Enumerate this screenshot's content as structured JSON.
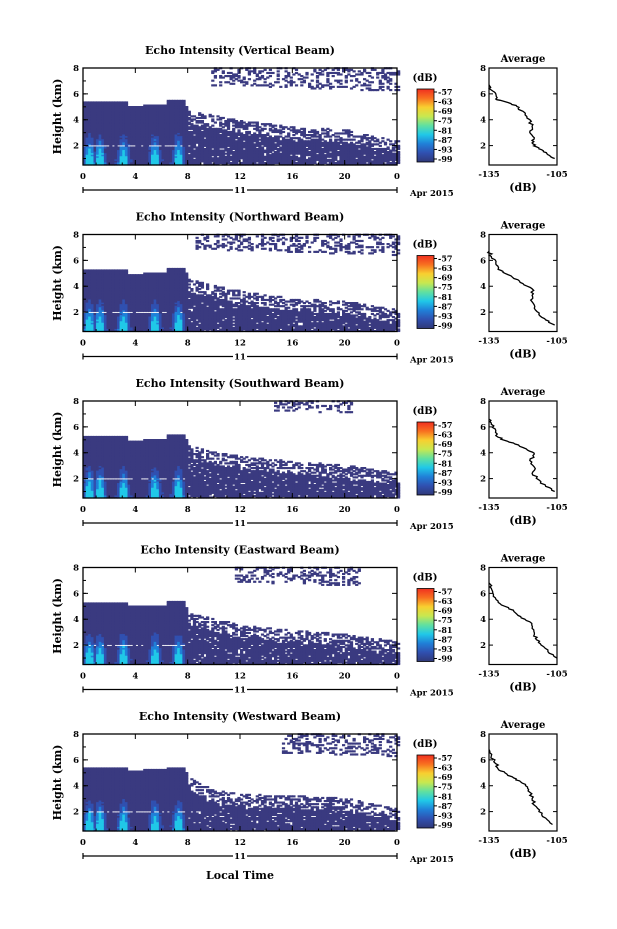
{
  "figure": {
    "xlabel": "Local Time",
    "date_label": "Apr 2015",
    "day_label": "11"
  },
  "colorbar": {
    "unit": "(dB)",
    "ticks": [
      "-57",
      "-63",
      "-69",
      "-75",
      "-81",
      "-87",
      "-93",
      "-99"
    ],
    "stops": [
      "#f03020",
      "#f87020",
      "#f8d030",
      "#c8e850",
      "#60e0a0",
      "#20c8e8",
      "#2080d8",
      "#3050b0",
      "#303878"
    ],
    "background_color": "#3a3a80"
  },
  "chart_data": [
    {
      "type": "heatmap",
      "title": "Echo Intensity (Vertical Beam)",
      "xlabel": "",
      "ylabel": "Height (km)",
      "x_ticks": [
        "0",
        "4",
        "8",
        "12",
        "16",
        "20",
        "0"
      ],
      "y_ticks": [
        "2",
        "4",
        "6",
        "8"
      ],
      "xlim": [
        0,
        24
      ],
      "ylim": [
        0.5,
        8
      ],
      "echo_top_km": [
        [
          0,
          5.4
        ],
        [
          3.2,
          5.4
        ],
        [
          3.3,
          5.0
        ],
        [
          4.4,
          5.0
        ],
        [
          4.5,
          5.1
        ],
        [
          6.2,
          5.1
        ],
        [
          6.4,
          5.5
        ],
        [
          7.6,
          5.5
        ],
        [
          8,
          4.6
        ],
        [
          10,
          4.3
        ],
        [
          12,
          3.9
        ],
        [
          16,
          3.4
        ],
        [
          20,
          3.2
        ],
        [
          23.5,
          2.4
        ]
      ],
      "upper_layer_km": [
        [
          9.7,
          6.6
        ],
        [
          24,
          8.0
        ]
      ],
      "average": {
        "title": "Average",
        "xlabel": "(dB)",
        "x_ticks": [
          "-135",
          "-105"
        ],
        "y_ticks": [
          "2",
          "4",
          "6",
          "8"
        ],
        "xlim": [
          -135,
          -105
        ],
        "ylim": [
          0.5,
          8
        ],
        "profile": [
          [
            -106,
            1.0
          ],
          [
            -109,
            1.3
          ],
          [
            -111,
            1.6
          ],
          [
            -114,
            1.9
          ],
          [
            -116,
            2.2
          ],
          [
            -115,
            2.6
          ],
          [
            -117,
            3.0
          ],
          [
            -116,
            3.5
          ],
          [
            -117,
            4.0
          ],
          [
            -119,
            4.5
          ],
          [
            -122,
            4.8
          ],
          [
            -123,
            5.1
          ],
          [
            -128,
            5.4
          ],
          [
            -132,
            5.6
          ],
          [
            -132,
            6.0
          ],
          [
            -134,
            6.3
          ],
          [
            -135,
            6.7
          ]
        ]
      }
    },
    {
      "type": "heatmap",
      "title": "Echo Intensity (Northward Beam)",
      "xlabel": "",
      "ylabel": "Height (km)",
      "x_ticks": [
        "0",
        "4",
        "8",
        "12",
        "16",
        "20",
        "0"
      ],
      "y_ticks": [
        "2",
        "4",
        "6",
        "8"
      ],
      "xlim": [
        0,
        24
      ],
      "ylim": [
        0.5,
        8
      ],
      "echo_top_km": [
        [
          0,
          5.2
        ],
        [
          3.2,
          5.2
        ],
        [
          3.3,
          4.9
        ],
        [
          4.4,
          4.9
        ],
        [
          4.5,
          5.0
        ],
        [
          6.2,
          5.0
        ],
        [
          6.4,
          5.4
        ],
        [
          7.6,
          5.4
        ],
        [
          8,
          4.5
        ],
        [
          10,
          4.0
        ],
        [
          12,
          3.6
        ],
        [
          16,
          3.0
        ],
        [
          20,
          2.8
        ],
        [
          23.5,
          2.2
        ]
      ],
      "upper_layer_km": [
        [
          8.5,
          6.8
        ],
        [
          24,
          8.0
        ]
      ],
      "average": {
        "title": "Average",
        "xlabel": "(dB)",
        "x_ticks": [
          "-135",
          "-105"
        ],
        "y_ticks": [
          "2",
          "4",
          "6",
          "8"
        ],
        "xlim": [
          -135,
          -105
        ],
        "ylim": [
          0.5,
          8
        ],
        "profile": [
          [
            -106,
            1.0
          ],
          [
            -110,
            1.4
          ],
          [
            -113,
            1.8
          ],
          [
            -115,
            2.3
          ],
          [
            -116,
            2.8
          ],
          [
            -116,
            3.3
          ],
          [
            -116,
            3.8
          ],
          [
            -120,
            4.2
          ],
          [
            -124,
            4.6
          ],
          [
            -128,
            5.0
          ],
          [
            -131,
            5.3
          ],
          [
            -132,
            5.8
          ],
          [
            -134,
            6.3
          ],
          [
            -135,
            6.7
          ]
        ]
      }
    },
    {
      "type": "heatmap",
      "title": "Echo Intensity (Southward Beam)",
      "xlabel": "",
      "ylabel": "Height (km)",
      "x_ticks": [
        "0",
        "4",
        "8",
        "12",
        "16",
        "20",
        "0"
      ],
      "y_ticks": [
        "2",
        "4",
        "6",
        "8"
      ],
      "xlim": [
        0,
        24
      ],
      "ylim": [
        0.5,
        8
      ],
      "echo_top_km": [
        [
          0,
          5.3
        ],
        [
          3.2,
          5.3
        ],
        [
          3.3,
          4.9
        ],
        [
          4.4,
          4.9
        ],
        [
          4.5,
          5.0
        ],
        [
          6.2,
          5.0
        ],
        [
          6.4,
          5.4
        ],
        [
          7.6,
          5.4
        ],
        [
          8,
          4.5
        ],
        [
          10,
          4.0
        ],
        [
          12,
          3.7
        ],
        [
          16,
          3.3
        ],
        [
          20,
          3.0
        ],
        [
          23.5,
          2.5
        ]
      ],
      "upper_layer_km": [
        [
          14.5,
          7.2
        ],
        [
          20.5,
          8.0
        ]
      ],
      "average": {
        "title": "Average",
        "xlabel": "(dB)",
        "x_ticks": [
          "-135",
          "-105"
        ],
        "y_ticks": [
          "2",
          "4",
          "6",
          "8"
        ],
        "xlim": [
          -135,
          -105
        ],
        "ylim": [
          0.5,
          8
        ],
        "profile": [
          [
            -106,
            1.0
          ],
          [
            -110,
            1.4
          ],
          [
            -113,
            1.9
          ],
          [
            -116,
            2.4
          ],
          [
            -115,
            2.9
          ],
          [
            -117,
            3.4
          ],
          [
            -115,
            3.9
          ],
          [
            -118,
            4.2
          ],
          [
            -122,
            4.6
          ],
          [
            -127,
            4.9
          ],
          [
            -131,
            5.2
          ],
          [
            -132,
            5.7
          ],
          [
            -134,
            6.2
          ],
          [
            -135,
            6.6
          ]
        ]
      }
    },
    {
      "type": "heatmap",
      "title": "Echo Intensity (Eastward Beam)",
      "xlabel": "",
      "ylabel": "Height (km)",
      "x_ticks": [
        "0",
        "4",
        "8",
        "12",
        "16",
        "20",
        "0"
      ],
      "y_ticks": [
        "2",
        "4",
        "6",
        "8"
      ],
      "xlim": [
        0,
        24
      ],
      "ylim": [
        0.5,
        8
      ],
      "echo_top_km": [
        [
          0,
          5.3
        ],
        [
          3.2,
          5.3
        ],
        [
          3.3,
          5.0
        ],
        [
          4.4,
          5.0
        ],
        [
          4.5,
          5.0
        ],
        [
          6.2,
          5.0
        ],
        [
          6.4,
          5.4
        ],
        [
          7.6,
          5.4
        ],
        [
          8,
          4.4
        ],
        [
          10,
          4.0
        ],
        [
          12,
          3.5
        ],
        [
          16,
          3.1
        ],
        [
          20,
          2.8
        ],
        [
          23.5,
          2.3
        ]
      ],
      "upper_layer_km": [
        [
          11.5,
          6.8
        ],
        [
          21,
          8.0
        ]
      ],
      "average": {
        "title": "Average",
        "xlabel": "(dB)",
        "x_ticks": [
          "-135",
          "-105"
        ],
        "y_ticks": [
          "2",
          "4",
          "6",
          "8"
        ],
        "xlim": [
          -135,
          -105
        ],
        "ylim": [
          0.5,
          8
        ],
        "profile": [
          [
            -105,
            1.0
          ],
          [
            -109,
            1.5
          ],
          [
            -112,
            2.0
          ],
          [
            -114,
            2.4
          ],
          [
            -115,
            2.8
          ],
          [
            -116,
            3.3
          ],
          [
            -117,
            3.8
          ],
          [
            -121,
            4.2
          ],
          [
            -124,
            4.6
          ],
          [
            -128,
            5.0
          ],
          [
            -131,
            5.4
          ],
          [
            -133,
            5.9
          ],
          [
            -134,
            6.4
          ],
          [
            -135,
            6.8
          ]
        ]
      }
    },
    {
      "type": "heatmap",
      "title": "Echo Intensity (Westward Beam)",
      "xlabel": "",
      "ylabel": "Height (km)",
      "x_ticks": [
        "0",
        "4",
        "8",
        "12",
        "16",
        "20",
        "0"
      ],
      "y_ticks": [
        "2",
        "4",
        "6",
        "8"
      ],
      "xlim": [
        0,
        24
      ],
      "ylim": [
        0.5,
        8
      ],
      "echo_top_km": [
        [
          0,
          5.4
        ],
        [
          3.2,
          5.4
        ],
        [
          3.3,
          5.1
        ],
        [
          4.4,
          5.1
        ],
        [
          4.5,
          5.2
        ],
        [
          6.2,
          5.2
        ],
        [
          6.4,
          5.4
        ],
        [
          7.6,
          5.4
        ],
        [
          8,
          4.6
        ],
        [
          10,
          3.6
        ],
        [
          12,
          3.3
        ],
        [
          16,
          3.2
        ],
        [
          20,
          3.0
        ],
        [
          23.5,
          2.3
        ]
      ],
      "upper_layer_km": [
        [
          15,
          6.5
        ],
        [
          24,
          8.0
        ]
      ],
      "average": {
        "title": "Average",
        "xlabel": "(dB)",
        "x_ticks": [
          "-135",
          "-105"
        ],
        "y_ticks": [
          "2",
          "4",
          "6",
          "8"
        ],
        "xlim": [
          -135,
          -105
        ],
        "ylim": [
          0.5,
          8
        ],
        "profile": [
          [
            -107,
            1.0
          ],
          [
            -110,
            1.5
          ],
          [
            -113,
            2.0
          ],
          [
            -115,
            2.5
          ],
          [
            -116,
            3.0
          ],
          [
            -117,
            3.5
          ],
          [
            -118,
            3.9
          ],
          [
            -121,
            4.3
          ],
          [
            -124,
            4.6
          ],
          [
            -128,
            5.0
          ],
          [
            -131,
            5.3
          ],
          [
            -132,
            5.7
          ],
          [
            -134,
            6.3
          ],
          [
            -135,
            6.8
          ]
        ]
      }
    }
  ]
}
